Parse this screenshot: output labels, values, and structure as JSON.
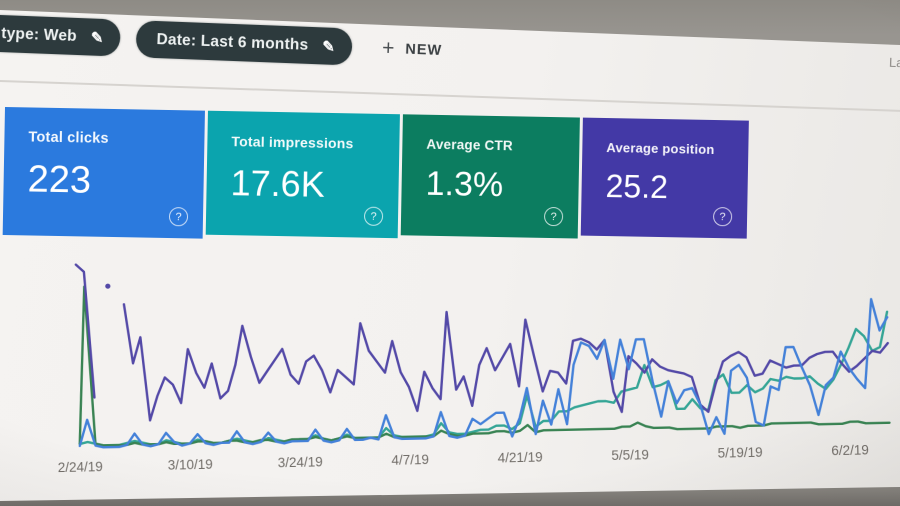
{
  "toolbar": {
    "chips": [
      {
        "label": "type: Web"
      },
      {
        "label": "Date: Last 6 months"
      }
    ],
    "new_button": {
      "label": "NEW"
    },
    "top_right_cropped_text": "La"
  },
  "icons": {
    "edit": "✎",
    "plus": "+",
    "help": "?"
  },
  "cards": [
    {
      "title": "Total clicks",
      "value": "223",
      "color": "#2b7ade"
    },
    {
      "title": "Total impressions",
      "value": "17.6K",
      "color": "#0ba4ae"
    },
    {
      "title": "Average CTR",
      "value": "1.3%",
      "color": "#0c7d60"
    },
    {
      "title": "Average position",
      "value": "25.2",
      "color": "#4339a6"
    }
  ],
  "chart_data": {
    "type": "line",
    "title": "",
    "xlabel": "",
    "ylabel": "",
    "x_tick_labels": [
      "2/24/19",
      "3/10/19",
      "3/24/19",
      "4/7/19",
      "4/21/19",
      "5/5/19",
      "5/19/19",
      "6/2/19"
    ],
    "x_tick_day_indices": [
      0,
      14,
      28,
      42,
      56,
      70,
      84,
      98
    ],
    "days_total": 104,
    "y_axis_visible": false,
    "grid": false,
    "legend_visible": false,
    "y_scale_note": "values estimated as percent of plot height (0=baseline, 100=tallest spike); null = gap in data",
    "draw_order": [
      1,
      2,
      3,
      0
    ],
    "series": [
      {
        "name": "Clicks",
        "color": "#3a7bd8",
        "values": [
          2,
          16,
          2,
          1,
          1,
          1,
          2,
          8,
          2,
          1,
          2,
          8,
          3,
          1,
          2,
          7,
          2,
          1,
          2,
          2,
          8,
          2,
          1,
          2,
          7,
          2,
          1,
          2,
          2,
          2,
          8,
          2,
          1,
          2,
          8,
          2,
          2,
          3,
          2,
          15,
          3,
          2,
          2,
          2,
          2,
          3,
          16,
          3,
          2,
          3,
          12,
          9,
          12,
          15,
          15,
          2,
          12,
          28,
          3,
          21,
          8,
          27,
          8,
          40,
          52,
          50,
          43,
          53,
          32,
          53,
          37,
          53,
          53,
          30,
          11,
          30,
          18,
          25,
          26,
          17,
          1,
          10,
          1,
          35,
          38,
          31,
          7,
          5,
          26,
          24,
          47,
          47,
          36,
          26,
          10,
          26,
          30,
          44,
          35,
          29,
          24,
          72,
          55,
          62
        ]
      },
      {
        "name": "Impressions",
        "color": "#2aa191",
        "values": [
          3,
          4,
          3,
          2,
          2,
          2,
          3,
          4,
          3,
          2,
          2,
          4,
          3,
          2,
          2,
          4,
          3,
          2,
          2,
          3,
          4,
          3,
          2,
          2,
          4,
          3,
          2,
          2,
          3,
          3,
          5,
          3,
          2,
          3,
          5,
          3,
          3,
          3,
          3,
          8,
          4,
          3,
          3,
          3,
          3,
          4,
          10,
          5,
          4,
          4,
          5,
          6,
          6,
          8,
          8,
          6,
          9,
          24,
          7,
          10,
          10,
          15,
          15,
          17,
          18,
          19,
          20,
          20,
          19,
          25,
          26,
          27,
          39,
          27,
          28,
          30,
          15,
          15,
          20,
          15,
          14,
          30,
          33,
          23,
          23,
          27,
          23,
          25,
          30,
          29,
          31,
          30,
          30,
          31,
          27,
          24,
          29,
          37,
          46,
          56,
          52,
          44,
          46,
          65
        ]
      },
      {
        "name": "CTR",
        "color": "#2e7d4a",
        "values": [
          3,
          88,
          3,
          2,
          2,
          2,
          2,
          3,
          2,
          2,
          2,
          3,
          2,
          2,
          2,
          3,
          3,
          2,
          2,
          3,
          3,
          2,
          2,
          3,
          3,
          2,
          2,
          3,
          3,
          3,
          4,
          3,
          2,
          3,
          4,
          3,
          3,
          3,
          3,
          5,
          3,
          3,
          3,
          3,
          3,
          3,
          6,
          4,
          3,
          3,
          4,
          4,
          4,
          5,
          5,
          4,
          5,
          8,
          4,
          5,
          5,
          5,
          5,
          5,
          5,
          5,
          5,
          5,
          5,
          6,
          6,
          8,
          6,
          5,
          5,
          5,
          4,
          4,
          4,
          4,
          4,
          5,
          5,
          5,
          4,
          5,
          5,
          5,
          6,
          6,
          6,
          6,
          6,
          6,
          5,
          5,
          5,
          5,
          6,
          6,
          5,
          5,
          5,
          5
        ]
      },
      {
        "name": "Average position",
        "color": "#4a3fa3",
        "values": [
          100,
          96,
          28,
          null,
          88,
          null,
          78,
          46,
          60,
          15,
          28,
          38,
          34,
          24,
          53,
          40,
          32,
          45,
          26,
          30,
          44,
          65,
          48,
          34,
          40,
          46,
          52,
          38,
          33,
          45,
          48,
          40,
          28,
          40,
          36,
          32,
          65,
          50,
          44,
          38,
          55,
          38,
          30,
          17,
          38,
          29,
          23,
          70,
          28,
          35,
          19,
          41,
          50,
          38,
          45,
          52,
          29,
          65,
          45,
          26,
          37,
          36,
          30,
          53,
          54,
          52,
          48,
          53,
          25,
          14,
          44,
          40,
          35,
          42,
          38,
          36,
          35,
          34,
          32,
          17,
          13,
          28,
          40,
          43,
          45,
          42,
          32,
          33,
          40,
          38,
          36,
          37,
          37,
          41,
          43,
          44,
          44,
          38,
          33,
          36,
          40,
          44,
          43,
          48
        ]
      }
    ]
  },
  "colors": {
    "chip_background": "#2d3a3d",
    "page_background": "#f3f1ef",
    "photo_surround": "#9b9893",
    "divider": "#d6d3cf",
    "tick_label_text": "#716d68"
  }
}
